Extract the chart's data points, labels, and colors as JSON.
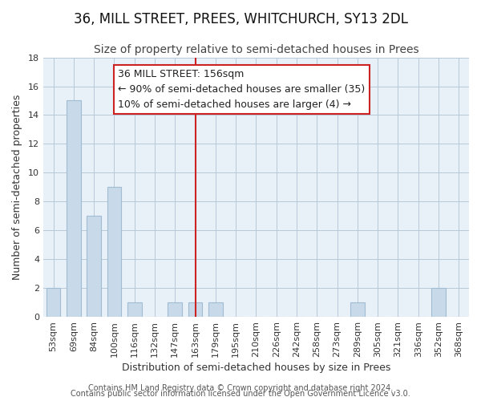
{
  "title": "36, MILL STREET, PREES, WHITCHURCH, SY13 2DL",
  "subtitle": "Size of property relative to semi-detached houses in Prees",
  "xlabel": "Distribution of semi-detached houses by size in Prees",
  "ylabel": "Number of semi-detached properties",
  "bar_color": "#c8daea",
  "bar_edge_color": "#a0bdd4",
  "highlight_color": "#cc2222",
  "highlight_index": 7,
  "categories": [
    "53sqm",
    "69sqm",
    "84sqm",
    "100sqm",
    "116sqm",
    "132sqm",
    "147sqm",
    "163sqm",
    "179sqm",
    "195sqm",
    "210sqm",
    "226sqm",
    "242sqm",
    "258sqm",
    "273sqm",
    "289sqm",
    "305sqm",
    "321sqm",
    "336sqm",
    "352sqm",
    "368sqm"
  ],
  "values": [
    2,
    15,
    7,
    9,
    1,
    0,
    1,
    1,
    1,
    0,
    0,
    0,
    0,
    0,
    0,
    1,
    0,
    0,
    0,
    2,
    0
  ],
  "ylim": [
    0,
    18
  ],
  "yticks": [
    0,
    2,
    4,
    6,
    8,
    10,
    12,
    14,
    16,
    18
  ],
  "annotation_title": "36 MILL STREET: 156sqm",
  "annotation_line1": "← 90% of semi-detached houses are smaller (35)",
  "annotation_line2": "10% of semi-detached houses are larger (4) →",
  "footer1": "Contains HM Land Registry data © Crown copyright and database right 2024.",
  "footer2": "Contains public sector information licensed under the Open Government Licence v3.0.",
  "title_fontsize": 12,
  "subtitle_fontsize": 10,
  "axis_label_fontsize": 9,
  "tick_fontsize": 8,
  "annotation_fontsize": 9,
  "footer_fontsize": 7,
  "plot_bg_color": "#e8f0f8"
}
